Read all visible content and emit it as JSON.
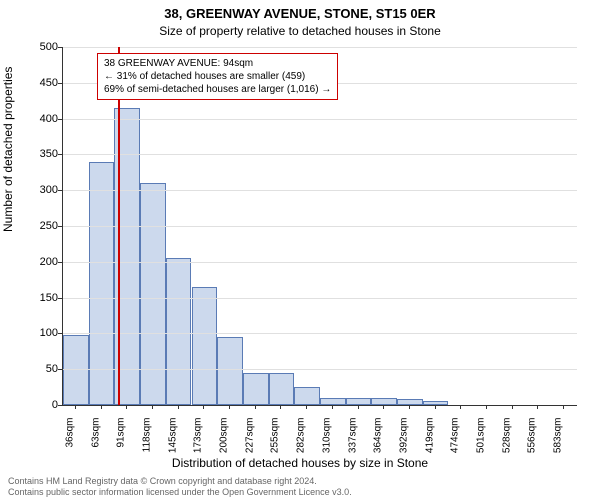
{
  "title_main": "38, GREENWAY AVENUE, STONE, ST15 0ER",
  "title_sub": "Size of property relative to detached houses in Stone",
  "y_axis_label": "Number of detached properties",
  "x_axis_label": "Distribution of detached houses by size in Stone",
  "chart": {
    "type": "histogram",
    "ylim": [
      0,
      500
    ],
    "ytick_step": 50,
    "x_categories": [
      "36sqm",
      "63sqm",
      "91sqm",
      "118sqm",
      "145sqm",
      "173sqm",
      "200sqm",
      "227sqm",
      "255sqm",
      "282sqm",
      "310sqm",
      "337sqm",
      "364sqm",
      "392sqm",
      "419sqm",
      "474sqm",
      "501sqm",
      "528sqm",
      "556sqm",
      "583sqm"
    ],
    "values": [
      98,
      340,
      415,
      310,
      205,
      165,
      95,
      45,
      45,
      25,
      10,
      10,
      10,
      8,
      5,
      0,
      0,
      0,
      0,
      0
    ],
    "bar_fill": "#CCD9ED",
    "bar_border": "#5A7BB5",
    "background_color": "#ffffff",
    "grid_color": "#e0e0e0",
    "marker_value_sqm": 94,
    "marker_color": "#cc0000"
  },
  "annotation": {
    "line1": "38 GREENWAY AVENUE: 94sqm",
    "line2": "← 31% of detached houses are smaller (459)",
    "line3": "69% of semi-detached houses are larger (1,016) →"
  },
  "footer_line1": "Contains HM Land Registry data © Crown copyright and database right 2024.",
  "footer_line2": "Contains public sector information licensed under the Open Government Licence v3.0."
}
